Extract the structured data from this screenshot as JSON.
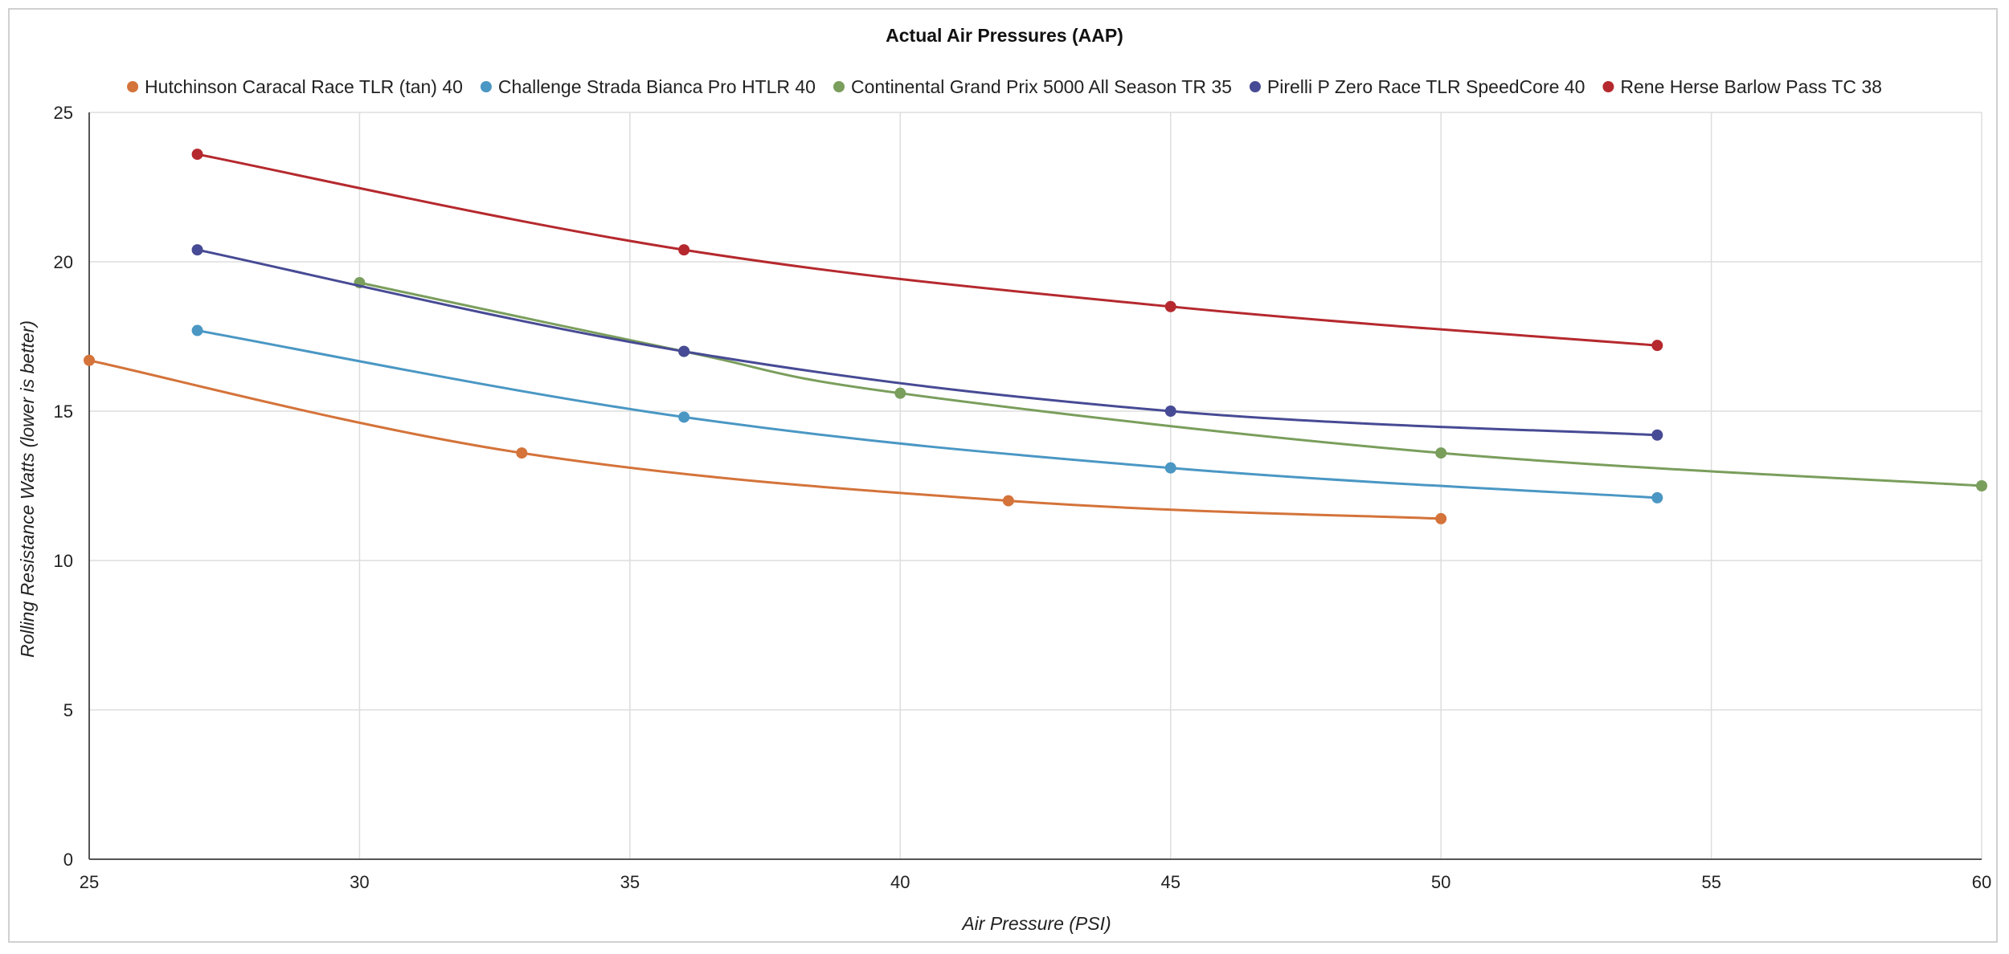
{
  "chart_data": {
    "type": "line",
    "title": "Actual Air Pressures (AAP)",
    "xlabel": "Air Pressure (PSI)",
    "ylabel": "Rolling Resistance Watts (lower is better)",
    "xlim": [
      25,
      60
    ],
    "ylim": [
      0,
      25
    ],
    "xticks": [
      "25",
      "30",
      "35",
      "40",
      "45",
      "50",
      "55",
      "60"
    ],
    "yticks": [
      "0",
      "5",
      "10",
      "15",
      "20",
      "25"
    ],
    "grid": true,
    "legend_position": "top",
    "series": [
      {
        "name": "Hutchinson Caracal Race TLR (tan) 40",
        "color": "#d4733a",
        "points": [
          [
            25,
            16.7
          ],
          [
            33,
            13.6
          ],
          [
            42,
            12.0
          ],
          [
            50,
            11.4
          ]
        ]
      },
      {
        "name": "Challenge Strada Bianca Pro HTLR 40",
        "color": "#4a97c4",
        "points": [
          [
            27,
            17.7
          ],
          [
            36,
            14.8
          ],
          [
            45,
            13.1
          ],
          [
            54,
            12.1
          ]
        ]
      },
      {
        "name": "Continental Grand Prix 5000 All Season TR 35",
        "color": "#7a9e5c",
        "points": [
          [
            30,
            19.3
          ],
          [
            36,
            17.0
          ],
          [
            40,
            15.6
          ],
          [
            50,
            13.6
          ],
          [
            60,
            12.5
          ]
        ]
      },
      {
        "name": "Pirelli P Zero Race TLR SpeedCore 40",
        "color": "#474a94",
        "points": [
          [
            27,
            20.4
          ],
          [
            36,
            17.0
          ],
          [
            45,
            15.0
          ],
          [
            54,
            14.2
          ]
        ]
      },
      {
        "name": "Rene Herse Barlow Pass TC 38",
        "color": "#b5292e",
        "points": [
          [
            27,
            23.6
          ],
          [
            36,
            20.4
          ],
          [
            45,
            18.5
          ],
          [
            54,
            17.2
          ]
        ]
      }
    ]
  }
}
